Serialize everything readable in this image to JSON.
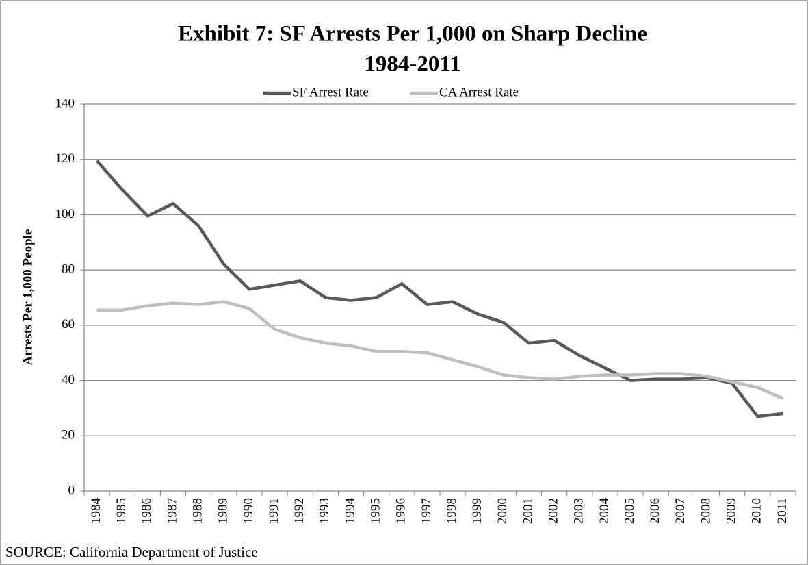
{
  "chart_data": {
    "type": "line",
    "title": "Exhibit 7: SF Arrests Per 1,000 on Sharp Decline",
    "subtitle": "1984-2011",
    "y_label": "Arrests Per 1,000 People",
    "source": "SOURCE:  California Department of Justice",
    "categories": [
      "1984",
      "1985",
      "1986",
      "1987",
      "1988",
      "1989",
      "1990",
      "1991",
      "1992",
      "1993",
      "1994",
      "1995",
      "1996",
      "1997",
      "1998",
      "1999",
      "2000",
      "2001",
      "2002",
      "2003",
      "2004",
      "2005",
      "2006",
      "2007",
      "2008",
      "2009",
      "2010",
      "2011"
    ],
    "series": [
      {
        "name": "SF Arrest Rate",
        "color": "#595959",
        "values": [
          119.5,
          109,
          99.5,
          104,
          96,
          82,
          73,
          74.5,
          76,
          70,
          69,
          70,
          75,
          67.5,
          68.5,
          64,
          61,
          53.5,
          54.5,
          49,
          44.5,
          40,
          40.5,
          40.5,
          41,
          39,
          27,
          28
        ]
      },
      {
        "name": "CA Arrest Rate",
        "color": "#bfbfbf",
        "values": [
          65.5,
          65.5,
          67,
          68,
          67.5,
          68.5,
          66,
          58.5,
          55.5,
          53.5,
          52.5,
          50.5,
          50.5,
          50,
          47.5,
          45,
          42,
          41,
          40.5,
          41.5,
          42,
          42,
          42.5,
          42.5,
          41.5,
          39.5,
          37.5,
          33.5
        ]
      }
    ],
    "ylim": [
      0,
      140
    ],
    "yticks": [
      0,
      20,
      40,
      60,
      80,
      100,
      120,
      140
    ],
    "grid": true,
    "legend": "top"
  }
}
